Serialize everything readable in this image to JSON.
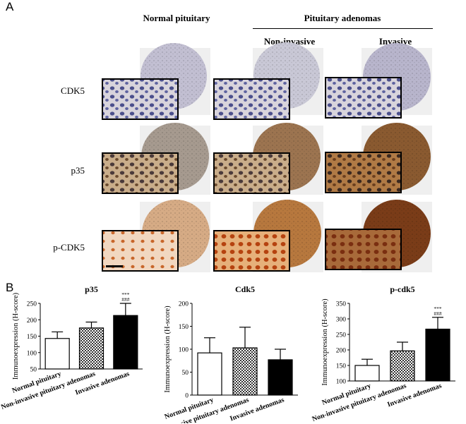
{
  "panel_a": {
    "letter": "A",
    "col_headers": {
      "normal": "Normal pituitary",
      "adenomas": "Pituitary adenomas",
      "non_invasive": "Non-invasive",
      "invasive": "Invasive"
    },
    "rows": [
      {
        "label": "CDK5",
        "stain": "light"
      },
      {
        "label": "p35",
        "stain": "medium"
      },
      {
        "label": "p-CDK5",
        "stain": "strong"
      }
    ],
    "colors": {
      "hematoxylin": "#5a5f9e",
      "dab_light": "#c8a27a",
      "dab_medium": "#8b5a2b",
      "dab_strong": "#a0521e"
    }
  },
  "panel_b": {
    "letter": "B",
    "categories": [
      "Normal pituitary",
      "Non-invasive pituitary adenomas",
      "Invasive adenomas"
    ],
    "ylabel": "Immunoexpression (H-score)"
  },
  "chart_data": [
    {
      "type": "bar",
      "title": "p35",
      "categories": [
        "Normal pituitary",
        "Non-invasive pituitary adenomas",
        "Invasive adenomas"
      ],
      "values": [
        143,
        175,
        213
      ],
      "errors": [
        20,
        18,
        37
      ],
      "ylabel": "Immunoexpression (H-score)",
      "ylim": [
        50,
        250
      ],
      "yticks": [
        50,
        100,
        150,
        200,
        250
      ],
      "significance": [
        "",
        "",
        "***\n###"
      ],
      "fills": [
        "white",
        "checker",
        "black"
      ]
    },
    {
      "type": "bar",
      "title": "Cdk5",
      "categories": [
        "Normal pituitary",
        "Non-invasive pituitary adenomas",
        "Invasive adenomas"
      ],
      "values": [
        92,
        103,
        77
      ],
      "errors": [
        33,
        45,
        23
      ],
      "ylabel": "Immunoexpression (H-score)",
      "ylim": [
        0,
        200
      ],
      "yticks": [
        0,
        50,
        100,
        150,
        200
      ],
      "significance": [
        "",
        "",
        ""
      ],
      "fills": [
        "white",
        "checker",
        "black"
      ]
    },
    {
      "type": "bar",
      "title": "p-cdk5",
      "categories": [
        "Normal pituitary",
        "Non-invasive pituitary adenomas",
        "Invasive adenomas"
      ],
      "values": [
        150,
        197,
        267
      ],
      "errors": [
        20,
        28,
        38
      ],
      "ylabel": "Immunoexpression (H-score)",
      "ylim": [
        100,
        350
      ],
      "yticks": [
        100,
        150,
        200,
        250,
        300,
        350
      ],
      "significance": [
        "",
        "",
        "***\n###"
      ],
      "fills": [
        "white",
        "checker",
        "black"
      ]
    }
  ]
}
